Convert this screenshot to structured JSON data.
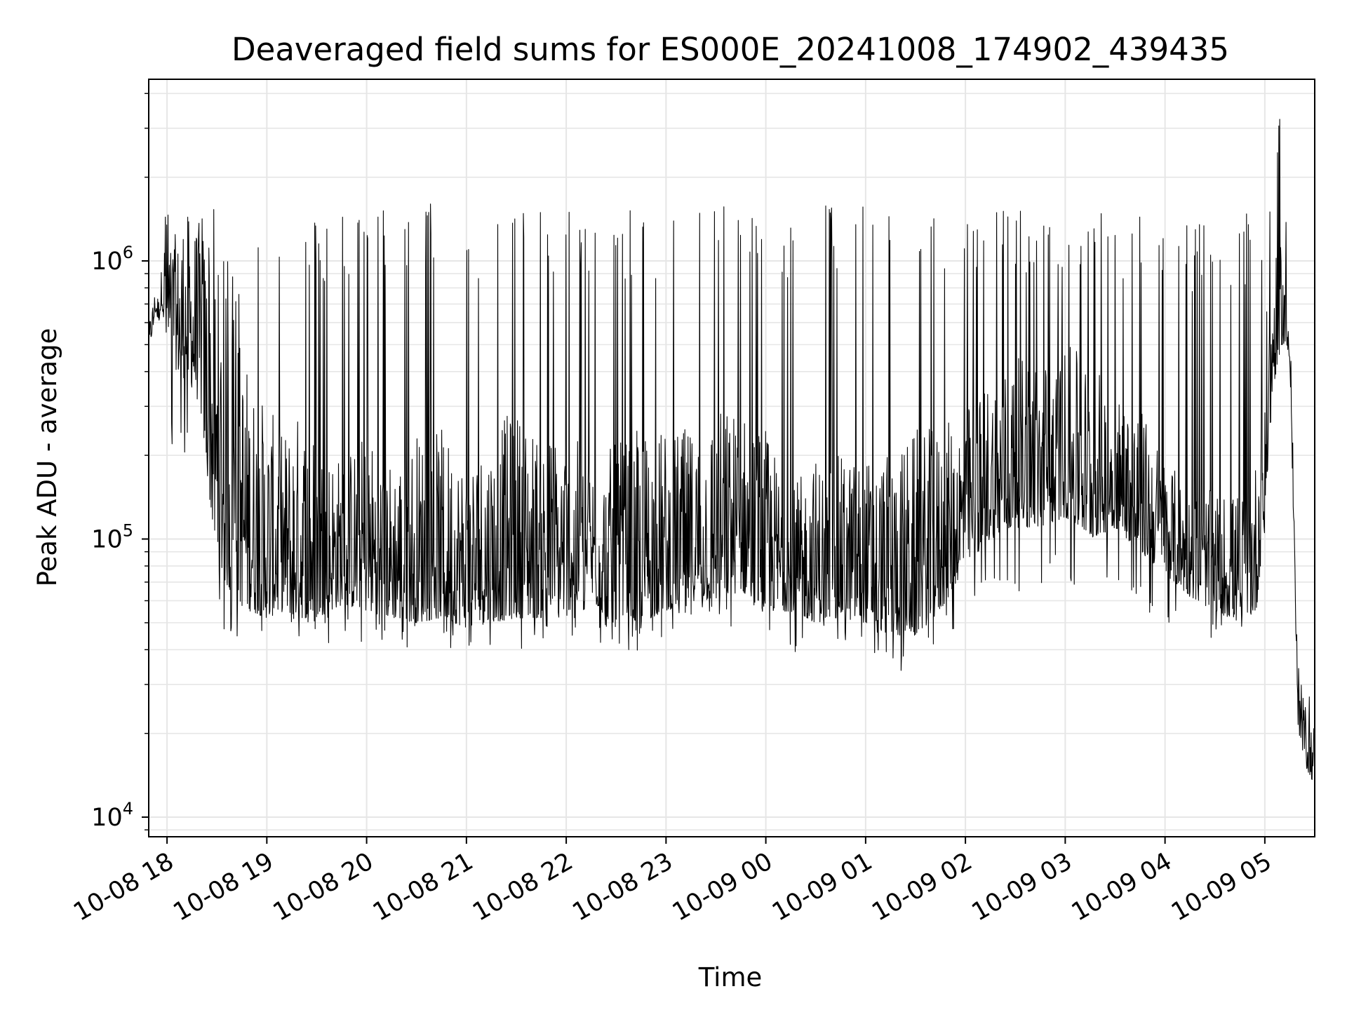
{
  "chart_data": {
    "type": "line",
    "title": "Deaveraged field sums for ES000E_20241008_174902_439435",
    "xlabel": "Time",
    "ylabel": "Peak ADU - average",
    "yscale": "log",
    "ylim": [
      8500,
      4500000
    ],
    "xlim": [
      "2024-10-08 17:49",
      "2024-10-09 05:30"
    ],
    "grid": true,
    "x_ticks": [
      "10-08 18",
      "10-08 19",
      "10-08 20",
      "10-08 21",
      "10-08 22",
      "10-08 23",
      "10-09 00",
      "10-09 01",
      "10-09 02",
      "10-09 03",
      "10-09 04",
      "10-09 05"
    ],
    "y_ticks": [
      {
        "base": "10",
        "exp": "4",
        "value": 10000
      },
      {
        "base": "10",
        "exp": "5",
        "value": 100000
      },
      {
        "base": "10",
        "exp": "6",
        "value": 1000000
      }
    ],
    "line_color": "#000000",
    "grid_color": "#e6e6e6",
    "series": [
      {
        "x": [
          "2024-10-08 17:49",
          "2024-10-08 17:51",
          "2024-10-08 17:53",
          "2024-10-08 17:55",
          "2024-10-08 17:57",
          "2024-10-08 17:59",
          "2024-10-08 18:02",
          "2024-10-08 18:06",
          "2024-10-08 18:10",
          "2024-10-08 18:15",
          "2024-10-08 18:20",
          "2024-10-08 18:25",
          "2024-10-08 18:30",
          "2024-10-08 18:35",
          "2024-10-08 18:40",
          "2024-10-08 18:50",
          "2024-10-08 19:00",
          "2024-10-08 19:10",
          "2024-10-08 19:20",
          "2024-10-08 19:30",
          "2024-10-08 19:45",
          "2024-10-08 20:00",
          "2024-10-08 20:15",
          "2024-10-08 20:30",
          "2024-10-08 20:45",
          "2024-10-08 21:00",
          "2024-10-08 21:15",
          "2024-10-08 21:30",
          "2024-10-08 21:45",
          "2024-10-08 22:00",
          "2024-10-08 22:15",
          "2024-10-08 22:30",
          "2024-10-08 22:45",
          "2024-10-08 23:00",
          "2024-10-08 23:15",
          "2024-10-08 23:30",
          "2024-10-08 23:45",
          "2024-10-09 00:00",
          "2024-10-09 00:15",
          "2024-10-09 00:30",
          "2024-10-09 00:45",
          "2024-10-09 01:00",
          "2024-10-09 01:15",
          "2024-10-09 01:30",
          "2024-10-09 01:45",
          "2024-10-09 02:00",
          "2024-10-09 02:15",
          "2024-10-09 02:30",
          "2024-10-09 02:45",
          "2024-10-09 03:00",
          "2024-10-09 03:15",
          "2024-10-09 03:30",
          "2024-10-09 03:45",
          "2024-10-09 04:00",
          "2024-10-09 04:15",
          "2024-10-09 04:30",
          "2024-10-09 04:45",
          "2024-10-09 04:55",
          "2024-10-09 05:00",
          "2024-10-09 05:05",
          "2024-10-09 05:10",
          "2024-10-09 05:15",
          "2024-10-09 05:20",
          "2024-10-09 05:25",
          "2024-10-09 05:30"
        ],
        "lo": [
          450000,
          550000,
          650000,
          600000,
          700000,
          500000,
          450000,
          400000,
          380000,
          350000,
          300000,
          150000,
          80000,
          70000,
          60000,
          55000,
          52000,
          55000,
          52000,
          52000,
          58000,
          55000,
          52000,
          50000,
          52000,
          48000,
          50000,
          52000,
          52000,
          55000,
          60000,
          48000,
          50000,
          55000,
          60000,
          60000,
          65000,
          55000,
          55000,
          50000,
          52000,
          50000,
          45000,
          45000,
          55000,
          80000,
          100000,
          110000,
          110000,
          120000,
          100000,
          110000,
          90000,
          75000,
          62000,
          55000,
          50000,
          55000,
          120000,
          350000,
          500000,
          450000,
          20000,
          15000,
          13000
        ],
        "hi": [
          600000,
          700000,
          800000,
          750000,
          1000000,
          1500000,
          1400000,
          1200000,
          1600000,
          1400000,
          1400000,
          1300000,
          900000,
          800000,
          700000,
          400000,
          300000,
          250000,
          300000,
          250000,
          200000,
          250000,
          200000,
          250000,
          250000,
          200000,
          250000,
          300000,
          250000,
          250000,
          200000,
          220000,
          250000,
          250000,
          250000,
          300000,
          300000,
          250000,
          150000,
          200000,
          200000,
          200000,
          200000,
          250000,
          250000,
          300000,
          400000,
          450000,
          450000,
          500000,
          450000,
          350000,
          300000,
          200000,
          150000,
          150000,
          150000,
          200000,
          600000,
          900000,
          1300000,
          600000,
          30000,
          25000,
          22000
        ],
        "spike": [
          750000,
          800000,
          900000,
          850000,
          1800000,
          1800000,
          1700000,
          1500000,
          1800000,
          1600000,
          1700000,
          1600000,
          1500000,
          1100000,
          1000000,
          1600000,
          1500000,
          1500000,
          1600000,
          1400000,
          1600000,
          1500000,
          1600000,
          1700000,
          1600000,
          1600000,
          1500000,
          1600000,
          1500000,
          1600000,
          1500000,
          1600000,
          1500000,
          1600000,
          1550000,
          1650000,
          1600000,
          1600000,
          1500000,
          1600000,
          1700000,
          1600000,
          1700000,
          1600000,
          1650000,
          1600000,
          1600000,
          1600000,
          1600000,
          1500000,
          1500000,
          1600000,
          1500000,
          1600000,
          1400000,
          1500000,
          1400000,
          1600000,
          1500000,
          2200000,
          3600000,
          900000,
          35000,
          30000,
          24000
        ],
        "dip": [
          400000,
          500000,
          550000,
          500000,
          300000,
          250000,
          200000,
          220000,
          200000,
          180000,
          60000,
          55000,
          48000,
          45000,
          44000,
          45000,
          45000,
          44000,
          43000,
          44000,
          40000,
          43000,
          42000,
          38000,
          40000,
          36000,
          42000,
          40000,
          42000,
          43000,
          45000,
          35000,
          38000,
          45000,
          48000,
          45000,
          48000,
          43000,
          34000,
          40000,
          42000,
          41000,
          32000,
          35000,
          42000,
          45000,
          60000,
          65000,
          65000,
          70000,
          60000,
          62000,
          55000,
          50000,
          45000,
          38000,
          38000,
          40000,
          100000,
          300000,
          420000,
          350000,
          16000,
          12000,
          11000
        ]
      }
    ]
  }
}
